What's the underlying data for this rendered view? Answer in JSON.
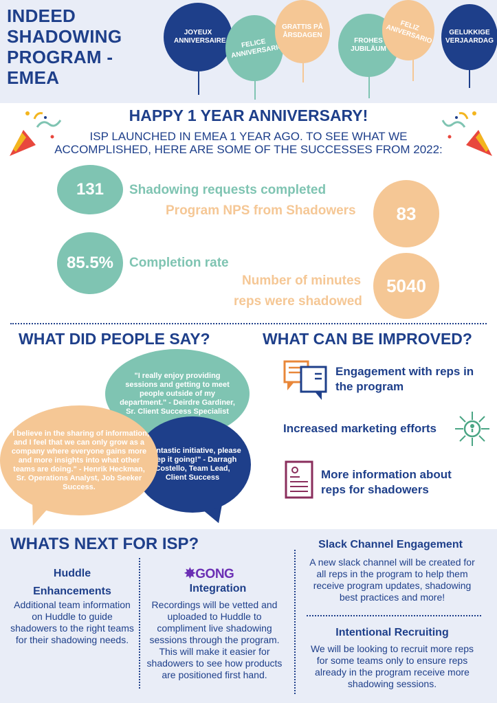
{
  "header": {
    "title": "INDEED SHADOWING PROGRAM - EMEA",
    "balloons": [
      {
        "text": "JOYEUX ANNIVERSAIRE",
        "color": "#1e3f8a"
      },
      {
        "text": "FELICE ANNIVERSARIO",
        "color": "#7fc4b2"
      },
      {
        "text": "GRATTIS PÅ ÅRSDAGEN",
        "color": "#f5c795"
      },
      {
        "text": "FROHES JUBILÄUM",
        "color": "#7fc4b2"
      },
      {
        "text": "FELIZ ANIVERSARIO",
        "color": "#f5c795"
      },
      {
        "text": "GELUKKIGE VERJAARDAG",
        "color": "#1e3f8a"
      }
    ]
  },
  "anniversary": {
    "title": "HAPPY 1 YEAR ANNIVERSARY!",
    "intro": "ISP LAUNCHED IN EMEA 1 YEAR AGO. TO SEE WHAT WE ACCOMPLISHED, HERE ARE SOME OF THE SUCCESSES FROM 2022:"
  },
  "stats": [
    {
      "value": "131",
      "label": "Shadowing requests completed"
    },
    {
      "value": "83",
      "label": "Program NPS from Shadowers"
    },
    {
      "value": "85.5%",
      "label": "Completion rate"
    },
    {
      "value": "5040",
      "label_line1": "Number of minutes",
      "label_line2": "reps were shadowed"
    }
  ],
  "people_say": {
    "heading": "WHAT DID PEOPLE SAY?",
    "quotes": [
      "\"I really enjoy providing sessions and getting to meet people outside of my department.\" - Deirdre Gardiner, Sr. Client Success Specialist",
      "\"I believe in the sharing of information, and I feel that we can only grow as a company where everyone gains more and more insights into what other teams are doing.\" - Henrik Heckman, Sr. Operations Analyst, Job Seeker Success.",
      "\"Fantastic initiative, please keep it going!\" - Darragh Costello, Team Lead, Client Success"
    ]
  },
  "improved": {
    "heading": "WHAT CAN BE IMPROVED?",
    "items": [
      {
        "label": "Engagement with reps in the program",
        "icon": "conversation-icon"
      },
      {
        "label": "Increased marketing efforts",
        "icon": "network-icon"
      },
      {
        "label": "More information about reps for shadowers",
        "icon": "document-icon"
      }
    ]
  },
  "next": {
    "heading": "WHATS NEXT FOR ISP?",
    "huddle": {
      "title": "Huddle Enhancements",
      "body": "Additional team information on Huddle to guide shadowers to the right teams for their shadowing needs."
    },
    "gong": {
      "logo": "GONG",
      "title": "Integration",
      "body": "Recordings will be vetted and uploaded to Huddle to compliment live shadowing sessions through the program. This will make it easier for shadowers to see how products are positioned first hand."
    },
    "slack": {
      "title": "Slack Channel Engagement",
      "body": "A new slack channel will be created for all reps in the program to help them receive program updates, shadowing best practices and more!"
    },
    "recruiting": {
      "title": "Intentional Recruiting",
      "body": "We will be looking to recruit more reps for some teams only to ensure reps already in the program receive more shadowing sessions."
    }
  }
}
